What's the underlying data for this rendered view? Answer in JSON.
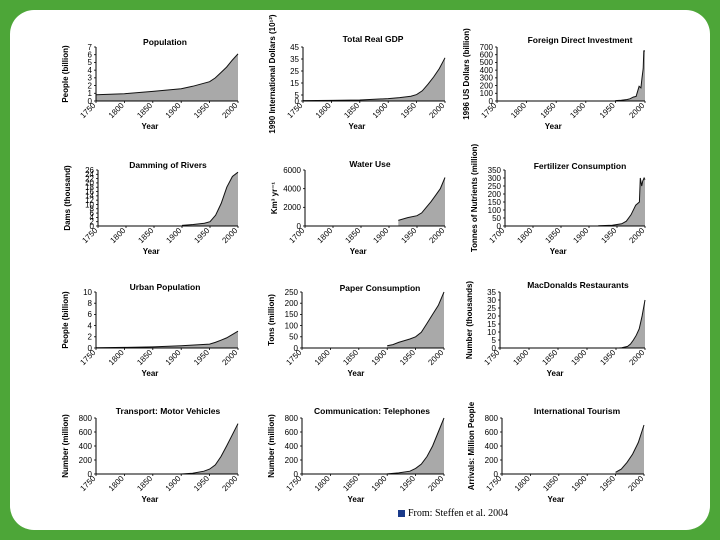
{
  "page": {
    "citation": "From: Steffen et al. 2004"
  },
  "chart_data": [
    {
      "type": "area",
      "title": "Population",
      "xlabel": "Year",
      "ylabel": "People (billion)",
      "xlim": [
        1750,
        2000
      ],
      "ylim": [
        0,
        7
      ],
      "xticks": [
        "1750",
        "1800",
        "1850",
        "1900",
        "1950",
        "2000"
      ],
      "yticks": [
        "0",
        "1",
        "2",
        "3",
        "4",
        "5",
        "6",
        "7"
      ],
      "x": [
        1750,
        1800,
        1850,
        1900,
        1920,
        1950,
        1960,
        1970,
        1980,
        1990,
        2000
      ],
      "values": [
        0.8,
        0.95,
        1.25,
        1.6,
        1.9,
        2.5,
        3.0,
        3.7,
        4.4,
        5.3,
        6.1
      ]
    },
    {
      "type": "area",
      "title": "Total Real GDP",
      "xlabel": "Year",
      "ylabel": "1990 International Dollars (10¹²)",
      "xlim": [
        1750,
        2000
      ],
      "ylim": [
        0,
        45
      ],
      "xticks": [
        "1750",
        "1800",
        "1850",
        "1900",
        "1950",
        "2000"
      ],
      "yticks": [
        "0",
        "5",
        "15",
        "25",
        "35",
        "45"
      ],
      "x": [
        1750,
        1800,
        1850,
        1900,
        1920,
        1940,
        1950,
        1960,
        1970,
        1980,
        1990,
        2000
      ],
      "values": [
        0.3,
        0.5,
        0.8,
        2.0,
        2.8,
        4.0,
        5.3,
        8.5,
        14,
        20,
        27,
        36
      ]
    },
    {
      "type": "area",
      "title": "Foreign Direct Investment",
      "xlabel": "Year",
      "ylabel": "1996 US Dollars (billion)",
      "xlim": [
        1750,
        2000
      ],
      "ylim": [
        0,
        700
      ],
      "xticks": [
        "1750",
        "1800",
        "1850",
        "1900",
        "1950",
        "2000"
      ],
      "yticks": [
        "0",
        "100",
        "200",
        "300",
        "400",
        "500",
        "600",
        "700"
      ],
      "x": [
        1950,
        1960,
        1970,
        1975,
        1980,
        1985,
        1990,
        1993,
        1995,
        1997,
        1998,
        2000
      ],
      "values": [
        5,
        10,
        20,
        30,
        50,
        60,
        190,
        170,
        300,
        420,
        650,
        650
      ]
    },
    {
      "type": "area",
      "title": "Damming of Rivers",
      "xlabel": "Year",
      "ylabel": "Dams (thousand)",
      "xlim": [
        1750,
        2000
      ],
      "ylim": [
        0,
        26
      ],
      "xticks": [
        "1750",
        "1800",
        "1850",
        "1900",
        "1950",
        "2000"
      ],
      "yticks": [
        "0",
        "2",
        "4",
        "6",
        "8",
        "10",
        "12",
        "14",
        "16",
        "18",
        "20",
        "22",
        "24",
        "26"
      ],
      "x": [
        1900,
        1920,
        1940,
        1950,
        1960,
        1970,
        1980,
        1990,
        2000
      ],
      "values": [
        0.3,
        0.7,
        1.3,
        2.0,
        5.0,
        10.5,
        18,
        23,
        25
      ]
    },
    {
      "type": "area",
      "title": "Water Use",
      "xlabel": "Year",
      "ylabel": "Km³ yr⁻¹",
      "xlim": [
        1700,
        2000
      ],
      "ylim": [
        0,
        6000
      ],
      "xticks": [
        "1700",
        "1800",
        "1850",
        "1900",
        "1950",
        "2000"
      ],
      "yticks": [
        "0",
        "2000",
        "4000",
        "6000"
      ],
      "x": [
        1900,
        1920,
        1940,
        1950,
        1960,
        1970,
        1980,
        1990,
        2000
      ],
      "values": [
        600,
        900,
        1100,
        1400,
        2000,
        2600,
        3300,
        4000,
        5200
      ]
    },
    {
      "type": "area",
      "title": "Fertilizer Consumption",
      "xlabel": "Year",
      "ylabel": "Tonnes of Nutrients (million)",
      "xlim": [
        1700,
        2000
      ],
      "ylim": [
        0,
        350
      ],
      "xticks": [
        "1700",
        "1800",
        "1850",
        "1900",
        "1950",
        "2000"
      ],
      "yticks": [
        "0",
        "50",
        "100",
        "150",
        "200",
        "250",
        "300",
        "350"
      ],
      "x": [
        1900,
        1930,
        1950,
        1960,
        1970,
        1980,
        1988,
        1990,
        1993,
        1995,
        1998,
        2000
      ],
      "values": [
        2,
        5,
        14,
        30,
        70,
        130,
        150,
        300,
        250,
        280,
        300,
        290
      ]
    },
    {
      "type": "area",
      "title": "Urban Population",
      "xlabel": "Year",
      "ylabel": "People (billion)",
      "xlim": [
        1750,
        2000
      ],
      "ylim": [
        0,
        10
      ],
      "xticks": [
        "1750",
        "1800",
        "1850",
        "1900",
        "1950",
        "2000"
      ],
      "yticks": [
        "0",
        "2",
        "4",
        "6",
        "8",
        "10"
      ],
      "x": [
        1750,
        1800,
        1850,
        1900,
        1950,
        1960,
        1970,
        1980,
        1990,
        2000
      ],
      "values": [
        0.05,
        0.1,
        0.2,
        0.4,
        0.7,
        1.0,
        1.4,
        1.8,
        2.4,
        3.0
      ]
    },
    {
      "type": "area",
      "title": "Paper Consumption",
      "xlabel": "Year",
      "ylabel": "Tons (million)",
      "xlim": [
        1750,
        2000
      ],
      "ylim": [
        0,
        250
      ],
      "xticks": [
        "1750",
        "1800",
        "1850",
        "1900",
        "1950",
        "2000"
      ],
      "yticks": [
        "0",
        "50",
        "100",
        "150",
        "200",
        "250"
      ],
      "x": [
        1900,
        1910,
        1920,
        1940,
        1950,
        1960,
        1970,
        1980,
        1990,
        2000
      ],
      "values": [
        10,
        15,
        25,
        40,
        50,
        70,
        110,
        150,
        190,
        250
      ]
    },
    {
      "type": "area",
      "title": "MacDonalds Restaurants",
      "xlabel": "Year",
      "ylabel": "Number (thousands)",
      "xlim": [
        1750,
        2000
      ],
      "ylim": [
        0,
        35
      ],
      "xticks": [
        "1750",
        "1800",
        "1850",
        "1900",
        "1950",
        "2000"
      ],
      "yticks": [
        "0",
        "5",
        "10",
        "15",
        "20",
        "25",
        "30",
        "35"
      ],
      "x": [
        1955,
        1960,
        1970,
        1975,
        1980,
        1985,
        1990,
        1995,
        2000
      ],
      "values": [
        0,
        0.2,
        1.0,
        2.5,
        5,
        8,
        12,
        20,
        30
      ]
    },
    {
      "type": "area",
      "title": "Transport: Motor Vehicles",
      "xlabel": "Year",
      "ylabel": "Number (million)",
      "xlim": [
        1750,
        2000
      ],
      "ylim": [
        0,
        800
      ],
      "xticks": [
        "1750",
        "1800",
        "1850",
        "1900",
        "1950",
        "2000"
      ],
      "yticks": [
        "0",
        "200",
        "400",
        "600",
        "800"
      ],
      "x": [
        1900,
        1920,
        1940,
        1950,
        1960,
        1970,
        1980,
        1990,
        2000
      ],
      "values": [
        0,
        10,
        40,
        70,
        130,
        250,
        400,
        560,
        720
      ]
    },
    {
      "type": "area",
      "title": "Communication: Telephones",
      "xlabel": "Year",
      "ylabel": "Number (million)",
      "xlim": [
        1750,
        2000
      ],
      "ylim": [
        0,
        800
      ],
      "xticks": [
        "1750",
        "1800",
        "1850",
        "1900",
        "1950",
        "2000"
      ],
      "yticks": [
        "0",
        "200",
        "400",
        "600",
        "800"
      ],
      "x": [
        1880,
        1900,
        1920,
        1940,
        1950,
        1960,
        1970,
        1980,
        1990,
        2000
      ],
      "values": [
        0,
        2,
        15,
        40,
        80,
        140,
        250,
        400,
        600,
        800
      ]
    },
    {
      "type": "area",
      "title": "International Tourism",
      "xlabel": "Year",
      "ylabel": "Arrivals: Million People",
      "xlim": [
        1750,
        2000
      ],
      "ylim": [
        0,
        800
      ],
      "xticks": [
        "1750",
        "1800",
        "1850",
        "1900",
        "1950",
        "2000"
      ],
      "yticks": [
        "0",
        "200",
        "400",
        "600",
        "800"
      ],
      "x": [
        1950,
        1960,
        1970,
        1980,
        1990,
        2000
      ],
      "values": [
        25,
        70,
        165,
        285,
        450,
        700
      ]
    }
  ]
}
